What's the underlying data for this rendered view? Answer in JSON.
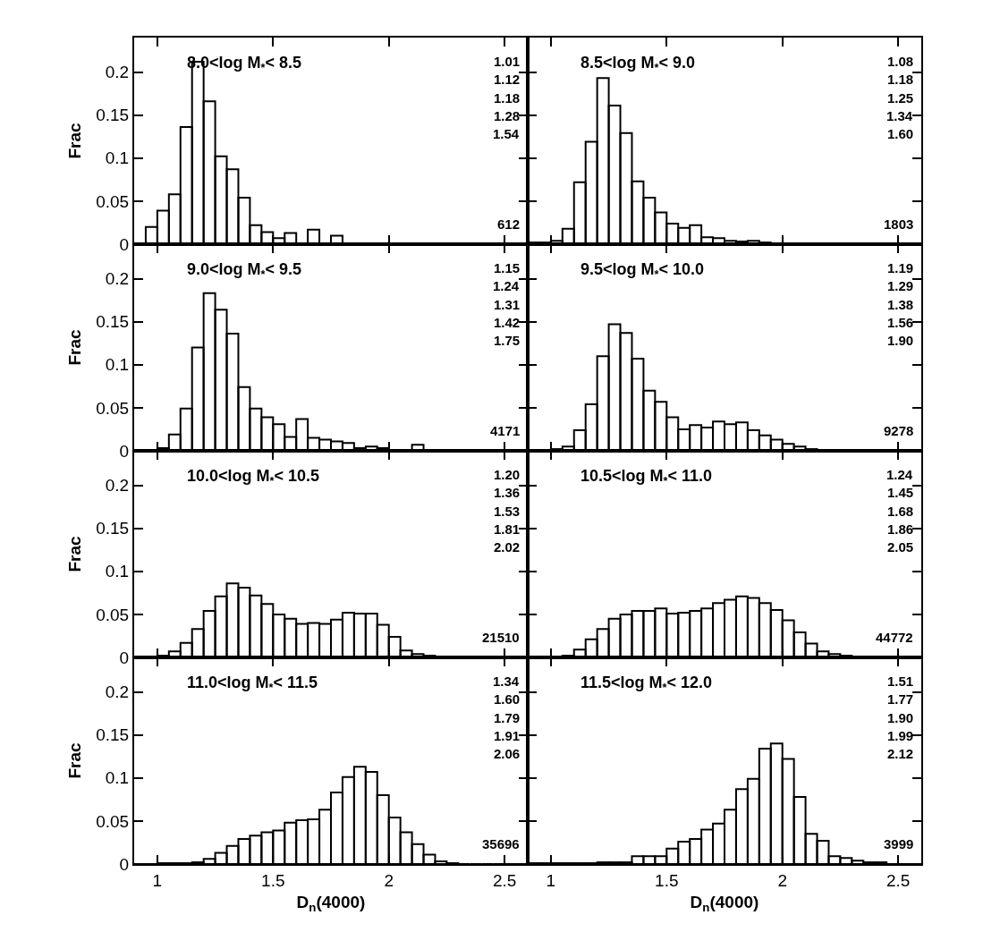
{
  "chart_data": [
    {
      "type": "histogram",
      "title": "8.0<log M$_{*}$< 8.5",
      "ylabel": "Frac",
      "color": "#000000",
      "tick_labels": "y",
      "xlim": [
        0.9,
        2.6
      ],
      "ylim": [
        0,
        0.24
      ],
      "xticks": [
        1,
        1.5,
        2,
        2.5
      ],
      "yticks": [
        0,
        0.05,
        0.1,
        0.15,
        0.2
      ],
      "annotations": [
        "1.01",
        "1.12",
        "1.18",
        "1.28",
        "1.54",
        "612"
      ],
      "bins": [
        0.9,
        0.95,
        1,
        1.05,
        1.1,
        1.15,
        1.2,
        1.25,
        1.3,
        1.35,
        1.4,
        1.45,
        1.5,
        1.55,
        1.6,
        1.65,
        1.7,
        1.75,
        1.8,
        1.85,
        1.9,
        1.95,
        2,
        2.05,
        2.1,
        2.15,
        2.2,
        2.25,
        2.3,
        2.35,
        2.4,
        2.45,
        2.5,
        2.55,
        2.6
      ],
      "values": [
        0,
        0.02,
        0.039,
        0.058,
        0.136,
        0.212,
        0.166,
        0.102,
        0.087,
        0.054,
        0.022,
        0.014,
        0.007,
        0.013,
        0,
        0.017,
        0,
        0.01,
        0,
        0,
        0,
        0,
        0,
        0,
        0,
        0,
        0,
        0,
        0,
        0,
        0,
        0,
        0,
        0
      ]
    },
    {
      "type": "histogram",
      "title": "8.5<log M$_{*}$< 9.0",
      "color": "#000000",
      "tick_labels": false,
      "xlim": [
        0.9,
        2.6
      ],
      "ylim": [
        0,
        0.24
      ],
      "xticks": [
        1,
        1.5,
        2,
        2.5
      ],
      "yticks": [
        0,
        0.05,
        0.1,
        0.15,
        0.2
      ],
      "annotations": [
        "1.08",
        "1.18",
        "1.25",
        "1.34",
        "1.60",
        "1803"
      ],
      "bins": [
        0.9,
        0.95,
        1,
        1.05,
        1.1,
        1.15,
        1.2,
        1.25,
        1.3,
        1.35,
        1.4,
        1.45,
        1.5,
        1.55,
        1.6,
        1.65,
        1.7,
        1.75,
        1.8,
        1.85,
        1.9,
        1.95,
        2,
        2.05,
        2.1,
        2.15,
        2.2,
        2.25,
        2.3,
        2.35,
        2.4,
        2.45,
        2.5,
        2.55,
        2.6
      ],
      "values": [
        0.002,
        0.002,
        0.004,
        0.018,
        0.072,
        0.119,
        0.193,
        0.161,
        0.129,
        0.073,
        0.054,
        0.037,
        0.024,
        0.019,
        0.022,
        0.008,
        0.007,
        0.004,
        0.003,
        0.004,
        0.002,
        0.001,
        0,
        0,
        0,
        0,
        0,
        0,
        0,
        0,
        0,
        0,
        0,
        0
      ]
    },
    {
      "type": "histogram",
      "title": "9.0<log M$_{*}$< 9.5",
      "ylabel": "Frac",
      "color": "#000000",
      "tick_labels": "y",
      "xlim": [
        0.9,
        2.6
      ],
      "ylim": [
        0,
        0.24
      ],
      "xticks": [
        1,
        1.5,
        2,
        2.5
      ],
      "yticks": [
        0,
        0.05,
        0.1,
        0.15,
        0.2
      ],
      "annotations": [
        "1.15",
        "1.24",
        "1.31",
        "1.42",
        "1.75",
        "4171"
      ],
      "bins": [
        0.9,
        0.95,
        1,
        1.05,
        1.1,
        1.15,
        1.2,
        1.25,
        1.3,
        1.35,
        1.4,
        1.45,
        1.5,
        1.55,
        1.6,
        1.65,
        1.7,
        1.75,
        1.8,
        1.85,
        1.9,
        1.95,
        2,
        2.05,
        2.1,
        2.15,
        2.2,
        2.25,
        2.3,
        2.35,
        2.4,
        2.45,
        2.5,
        2.55,
        2.6
      ],
      "values": [
        0.001,
        0.001,
        0.003,
        0.019,
        0.049,
        0.12,
        0.183,
        0.164,
        0.136,
        0.074,
        0.049,
        0.039,
        0.031,
        0.016,
        0.037,
        0.015,
        0.013,
        0.011,
        0.009,
        0.003,
        0.005,
        0.003,
        0.001,
        0.001,
        0.007,
        0.001,
        0,
        0,
        0,
        0,
        0,
        0,
        0,
        0
      ]
    },
    {
      "type": "histogram",
      "title": "9.5<log M$_{*}$< 10.0",
      "color": "#000000",
      "tick_labels": false,
      "xlim": [
        0.9,
        2.6
      ],
      "ylim": [
        0,
        0.24
      ],
      "xticks": [
        1,
        1.5,
        2,
        2.5
      ],
      "yticks": [
        0,
        0.05,
        0.1,
        0.15,
        0.2
      ],
      "annotations": [
        "1.19",
        "1.29",
        "1.38",
        "1.56",
        "1.90",
        "9278"
      ],
      "bins": [
        0.9,
        0.95,
        1,
        1.05,
        1.1,
        1.15,
        1.2,
        1.25,
        1.3,
        1.35,
        1.4,
        1.45,
        1.5,
        1.55,
        1.6,
        1.65,
        1.7,
        1.75,
        1.8,
        1.85,
        1.9,
        1.95,
        2,
        2.05,
        2.1,
        2.15,
        2.2,
        2.25,
        2.3,
        2.35,
        2.4,
        2.45,
        2.5,
        2.55,
        2.6
      ],
      "values": [
        0.001,
        0.001,
        0.002,
        0.005,
        0.024,
        0.054,
        0.11,
        0.147,
        0.137,
        0.107,
        0.07,
        0.057,
        0.039,
        0.025,
        0.03,
        0.027,
        0.034,
        0.031,
        0.033,
        0.024,
        0.018,
        0.013,
        0.008,
        0.005,
        0.002,
        0.001,
        0,
        0,
        0,
        0,
        0,
        0,
        0,
        0
      ]
    },
    {
      "type": "histogram",
      "title": "10.0<log M$_{*}$< 10.5",
      "ylabel": "Frac",
      "color": "#000000",
      "tick_labels": "y",
      "xlim": [
        0.9,
        2.6
      ],
      "ylim": [
        0,
        0.24
      ],
      "xticks": [
        1,
        1.5,
        2,
        2.5
      ],
      "yticks": [
        0,
        0.05,
        0.1,
        0.15,
        0.2
      ],
      "annotations": [
        "1.20",
        "1.36",
        "1.53",
        "1.81",
        "2.02",
        "21510"
      ],
      "bins": [
        0.9,
        0.95,
        1,
        1.05,
        1.1,
        1.15,
        1.2,
        1.25,
        1.3,
        1.35,
        1.4,
        1.45,
        1.5,
        1.55,
        1.6,
        1.65,
        1.7,
        1.75,
        1.8,
        1.85,
        1.9,
        1.95,
        2,
        2.05,
        2.1,
        2.15,
        2.2,
        2.25,
        2.3,
        2.35,
        2.4,
        2.45,
        2.5,
        2.55,
        2.6
      ],
      "values": [
        0,
        0.001,
        0.002,
        0.007,
        0.017,
        0.033,
        0.054,
        0.071,
        0.086,
        0.081,
        0.072,
        0.062,
        0.05,
        0.045,
        0.039,
        0.04,
        0.039,
        0.044,
        0.052,
        0.051,
        0.051,
        0.038,
        0.024,
        0.008,
        0.004,
        0.002,
        0.001,
        0,
        0,
        0,
        0,
        0,
        0,
        0
      ]
    },
    {
      "type": "histogram",
      "title": "10.5<log M$_{*}$< 11.0",
      "color": "#000000",
      "tick_labels": false,
      "xlim": [
        0.9,
        2.6
      ],
      "ylim": [
        0,
        0.24
      ],
      "xticks": [
        1,
        1.5,
        2,
        2.5
      ],
      "yticks": [
        0,
        0.05,
        0.1,
        0.15,
        0.2
      ],
      "annotations": [
        "1.24",
        "1.45",
        "1.68",
        "1.86",
        "2.05",
        "44772"
      ],
      "bins": [
        0.9,
        0.95,
        1,
        1.05,
        1.1,
        1.15,
        1.2,
        1.25,
        1.3,
        1.35,
        1.4,
        1.45,
        1.5,
        1.55,
        1.6,
        1.65,
        1.7,
        1.75,
        1.8,
        1.85,
        1.9,
        1.95,
        2,
        2.05,
        2.1,
        2.15,
        2.2,
        2.25,
        2.3,
        2.35,
        2.4,
        2.45,
        2.5,
        2.55,
        2.6
      ],
      "values": [
        0,
        0,
        0.001,
        0.002,
        0.009,
        0.021,
        0.033,
        0.045,
        0.05,
        0.054,
        0.054,
        0.057,
        0.051,
        0.052,
        0.054,
        0.057,
        0.063,
        0.067,
        0.071,
        0.069,
        0.063,
        0.055,
        0.043,
        0.029,
        0.016,
        0.007,
        0.004,
        0.002,
        0.001,
        0,
        0,
        0,
        0,
        0
      ]
    },
    {
      "type": "histogram",
      "title": "11.0<log M$_{*}$< 11.5",
      "xlabel": "D$_{n}$(4000)",
      "ylabel": "Frac",
      "color": "#000000",
      "xlim": [
        0.9,
        2.6
      ],
      "ylim": [
        0,
        0.24
      ],
      "xticks": [
        1,
        1.5,
        2,
        2.5
      ],
      "yticks": [
        0,
        0.05,
        0.1,
        0.15,
        0.2
      ],
      "annotations": [
        "1.34",
        "1.60",
        "1.79",
        "1.91",
        "2.06",
        "35696"
      ],
      "bins": [
        0.9,
        0.95,
        1,
        1.05,
        1.1,
        1.15,
        1.2,
        1.25,
        1.3,
        1.35,
        1.4,
        1.45,
        1.5,
        1.55,
        1.6,
        1.65,
        1.7,
        1.75,
        1.8,
        1.85,
        1.9,
        1.95,
        2,
        2.05,
        2.1,
        2.15,
        2.2,
        2.25,
        2.3,
        2.35,
        2.4,
        2.45,
        2.5,
        2.55,
        2.6
      ],
      "values": [
        0,
        0,
        0.001,
        0.001,
        0.001,
        0.002,
        0.006,
        0.013,
        0.021,
        0.029,
        0.033,
        0.037,
        0.039,
        0.048,
        0.051,
        0.052,
        0.063,
        0.083,
        0.101,
        0.113,
        0.107,
        0.08,
        0.054,
        0.037,
        0.023,
        0.011,
        0.003,
        0.001,
        0,
        0,
        0,
        0,
        0,
        0
      ]
    },
    {
      "type": "histogram",
      "title": "11.5<log M$_{*}$< 12.0",
      "xlabel": "D$_{n}$(4000)",
      "color": "#000000",
      "tick_labels": "x",
      "xlim": [
        0.9,
        2.6
      ],
      "ylim": [
        0,
        0.24
      ],
      "xticks": [
        1,
        1.5,
        2,
        2.5
      ],
      "yticks": [
        0,
        0.05,
        0.1,
        0.15,
        0.2
      ],
      "annotations": [
        "1.51",
        "1.77",
        "1.90",
        "1.99",
        "2.12",
        "3999"
      ],
      "bins": [
        0.9,
        0.95,
        1,
        1.05,
        1.1,
        1.15,
        1.2,
        1.25,
        1.3,
        1.35,
        1.4,
        1.45,
        1.5,
        1.55,
        1.6,
        1.65,
        1.7,
        1.75,
        1.8,
        1.85,
        1.9,
        1.95,
        2,
        2.05,
        2.1,
        2.15,
        2.2,
        2.25,
        2.3,
        2.35,
        2.4,
        2.45,
        2.5,
        2.55,
        2.6
      ],
      "values": [
        0.001,
        0.001,
        0.001,
        0.001,
        0.001,
        0.001,
        0.002,
        0.002,
        0.002,
        0.009,
        0.009,
        0.009,
        0.018,
        0.026,
        0.029,
        0.04,
        0.047,
        0.063,
        0.087,
        0.099,
        0.134,
        0.14,
        0.122,
        0.078,
        0.035,
        0.027,
        0.009,
        0.007,
        0.004,
        0.002,
        0.002,
        0,
        0,
        0
      ]
    }
  ]
}
